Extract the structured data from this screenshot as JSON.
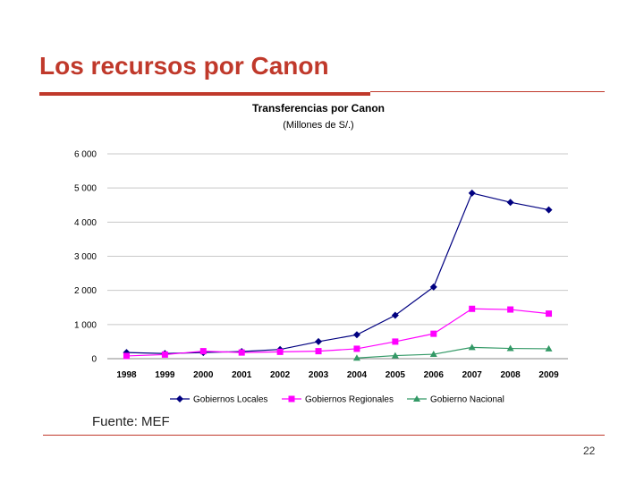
{
  "slide": {
    "title": "Los recursos por Canon",
    "source": "Fuente: MEF",
    "page_number": "22",
    "accent_color": "#c0392b"
  },
  "chart_data": {
    "type": "line",
    "title": "Transferencias por Canon",
    "subtitle": "(Millones de S/.)",
    "x": [
      "1998",
      "1999",
      "2000",
      "2001",
      "2002",
      "2003",
      "2004",
      "2005",
      "2006",
      "2007",
      "2008",
      "2009"
    ],
    "y_ticks": [
      "0",
      "1 000",
      "2 000",
      "3 000",
      "4 000",
      "5 000",
      "6 000"
    ],
    "ylim": [
      0,
      6000
    ],
    "grid": true,
    "legend_position": "bottom",
    "series": [
      {
        "name": "Gobiernos Locales",
        "color": "#000080",
        "marker": "diamond",
        "values": [
          180,
          150,
          180,
          210,
          270,
          500,
          700,
          1270,
          2100,
          4850,
          4580,
          4360
        ]
      },
      {
        "name": "Gobiernos Regionales",
        "color": "#ff00ff",
        "marker": "square",
        "values": [
          80,
          120,
          220,
          180,
          200,
          220,
          290,
          500,
          730,
          1460,
          1440,
          1320
        ]
      },
      {
        "name": "Gobierno Nacional",
        "color": "#339966",
        "marker": "triangle",
        "values": [
          null,
          null,
          null,
          null,
          null,
          null,
          20,
          90,
          130,
          330,
          300,
          290
        ]
      }
    ]
  }
}
